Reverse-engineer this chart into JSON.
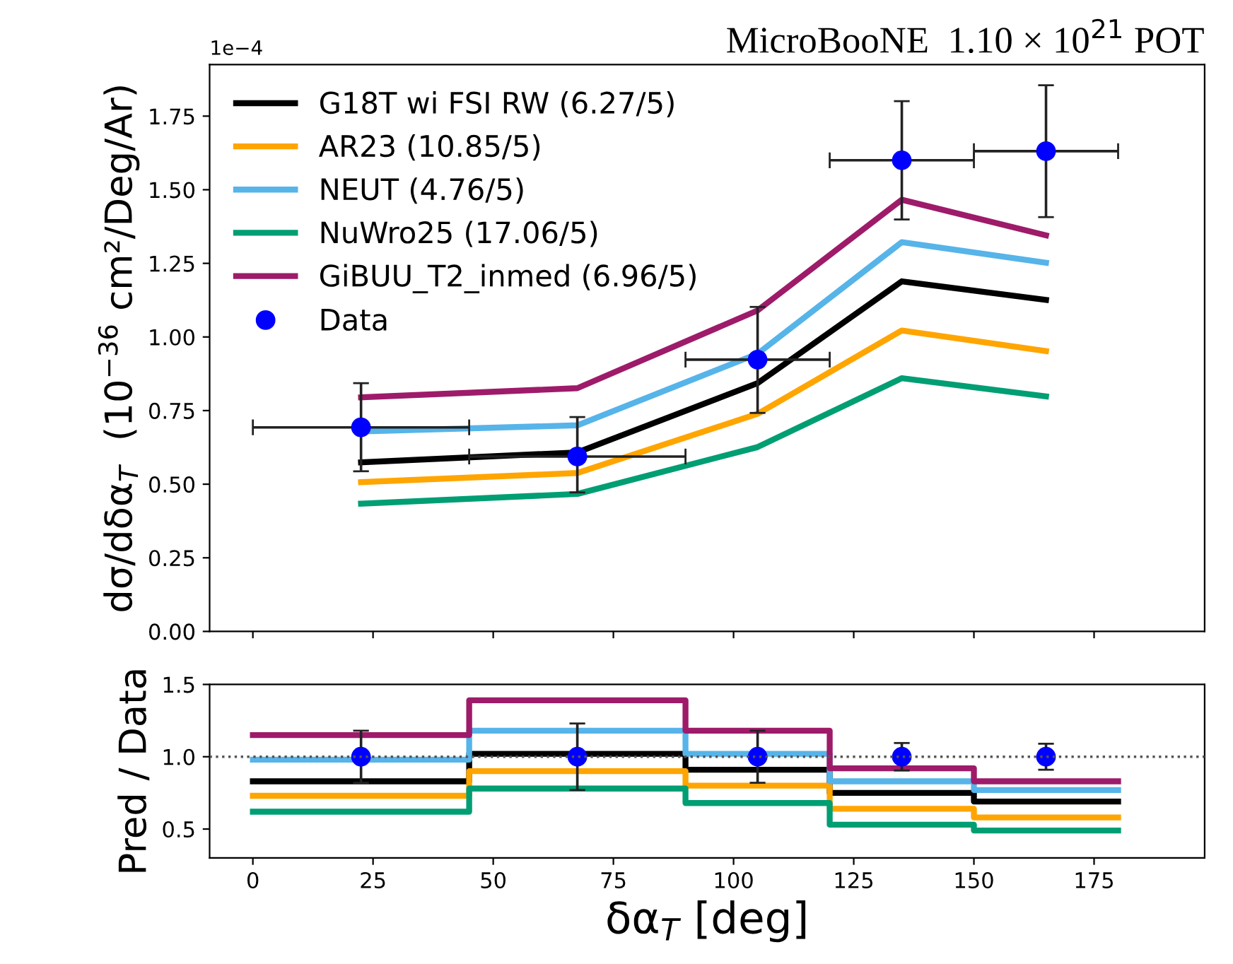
{
  "chart_data": [
    {
      "type": "line",
      "title": "MicroBooNE  1.10 × 10$^{21}$ POT",
      "ylabel": "dσ/dδα$_{T}$  (10$^{−36}$ cm²/Deg/Ar)",
      "annotations": [
        "1e−4"
      ],
      "xlim": [
        -9,
        198
      ],
      "xticks": [
        0,
        25,
        50,
        75,
        100,
        125,
        150,
        175
      ],
      "ylim": [
        0,
        1.925
      ],
      "yticks": [
        {
          "value": 0,
          "label": "0.00"
        },
        {
          "value": 0.25,
          "label": "0.25"
        },
        {
          "value": 0.5,
          "label": "0.50"
        },
        {
          "value": 0.75,
          "label": "0.75"
        },
        {
          "value": 1.0,
          "label": "1.00"
        },
        {
          "value": 1.25,
          "label": "1.25"
        },
        {
          "value": 1.5,
          "label": "1.50"
        },
        {
          "value": 1.75,
          "label": "1.75"
        }
      ],
      "tick_labels": "y",
      "legend": "top left",
      "grid": false,
      "series": [
        {
          "name": "G18T wi FSI RW (6.27/5)",
          "color": "#000000",
          "x": [
            22.5,
            67.5,
            105,
            135,
            165
          ],
          "values": [
            0.574,
            0.608,
            0.843,
            1.189,
            1.126
          ]
        },
        {
          "name": "AR23 (10.85/5)",
          "color": "#ffa500",
          "x": [
            22.5,
            67.5,
            105,
            135,
            165
          ],
          "values": [
            0.507,
            0.538,
            0.739,
            1.022,
            0.952
          ]
        },
        {
          "name": "NEUT (4.76/5)",
          "color": "#56b4e9",
          "x": [
            22.5,
            67.5,
            105,
            135,
            165
          ],
          "values": [
            0.679,
            0.7,
            0.943,
            1.322,
            1.252
          ]
        },
        {
          "name": "NuWro25 (17.06/5)",
          "color": "#009e73",
          "x": [
            22.5,
            67.5,
            105,
            135,
            165
          ],
          "values": [
            0.434,
            0.467,
            0.626,
            0.86,
            0.798
          ]
        },
        {
          "name": "GiBUU_T2_inmed (6.96/5)",
          "color": "#9e1b6a",
          "x": [
            22.5,
            67.5,
            105,
            135,
            165
          ],
          "values": [
            0.795,
            0.826,
            1.09,
            1.466,
            1.345
          ]
        },
        {
          "name": "Data",
          "type": "scatter",
          "marker": "circle",
          "color": "#0000ff",
          "x": [
            22.5,
            67.5,
            105,
            135,
            165
          ],
          "values": [
            0.693,
            0.594,
            0.923,
            1.6,
            1.631
          ],
          "errors": [
            [
              0.544,
              0.843
            ],
            [
              0.472,
              0.728
            ],
            [
              0.742,
              1.102
            ],
            [
              1.399,
              1.801
            ],
            [
              1.407,
              1.855
            ]
          ],
          "xerrors": [
            22.5,
            22.5,
            15,
            15,
            15
          ]
        }
      ]
    },
    {
      "type": "step",
      "ylabel": "Pred / Data",
      "xlabel": "δα$_{T}$ [deg]",
      "xlim": [
        -9,
        198
      ],
      "xticks": [
        0,
        25,
        50,
        75,
        100,
        125,
        150,
        175
      ],
      "ylim": [
        0.3,
        1.5
      ],
      "yticks": [
        {
          "value": 0.5,
          "label": "0.5"
        },
        {
          "value": 1.0,
          "label": "1.0"
        },
        {
          "value": 1.5,
          "label": "1.5"
        }
      ],
      "ref_lines": [
        {
          "axis": "y",
          "value": 1.0,
          "color": "#555555",
          "line_style": "dotted"
        }
      ],
      "series": [
        {
          "color": "#000000",
          "x": [
            0,
            45,
            90,
            120,
            150,
            180
          ],
          "values": [
            0.83,
            1.02,
            0.91,
            0.75,
            0.69,
            0.69
          ]
        },
        {
          "color": "#ffa500",
          "x": [
            0,
            45,
            90,
            120,
            150,
            180
          ],
          "values": [
            0.73,
            0.9,
            0.8,
            0.64,
            0.58,
            0.58
          ]
        },
        {
          "color": "#56b4e9",
          "x": [
            0,
            45,
            90,
            120,
            150,
            180
          ],
          "values": [
            0.98,
            1.18,
            1.02,
            0.83,
            0.77,
            0.77
          ]
        },
        {
          "color": "#009e73",
          "x": [
            0,
            45,
            90,
            120,
            150,
            180
          ],
          "values": [
            0.62,
            0.78,
            0.68,
            0.53,
            0.49,
            0.49
          ]
        },
        {
          "color": "#9e1b6a",
          "x": [
            0,
            45,
            90,
            120,
            150,
            180
          ],
          "values": [
            1.15,
            1.39,
            1.18,
            0.92,
            0.83,
            0.83
          ]
        },
        {
          "type": "scatter",
          "marker": "circle",
          "color": "#0000ff",
          "x": [
            22.5,
            67.5,
            105,
            135,
            165
          ],
          "values": [
            1.0,
            1.0,
            1.0,
            1.0,
            1.0
          ],
          "errors": [
            0.18,
            0.23,
            0.18,
            0.095,
            0.09
          ]
        }
      ]
    }
  ]
}
